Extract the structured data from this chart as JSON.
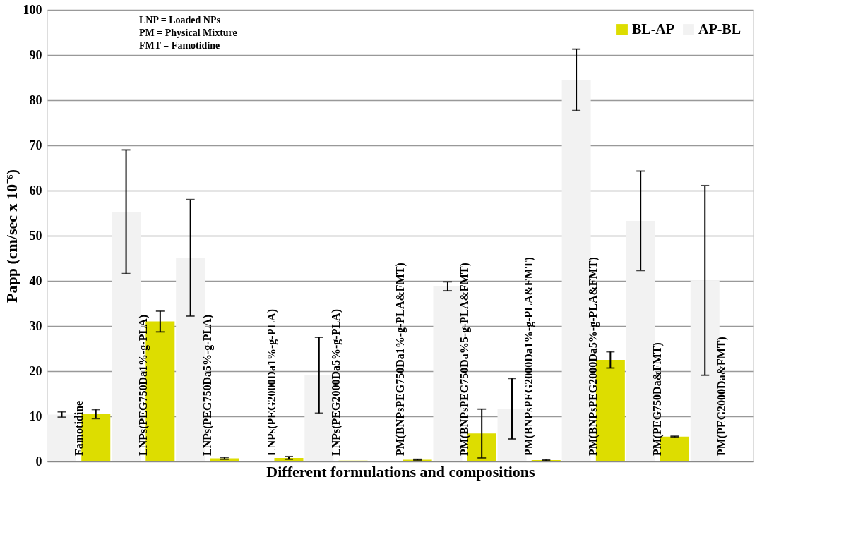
{
  "chart_data": {
    "type": "bar",
    "xlabel": "Different formulations and compositions",
    "ylabel": "Papp (cm/sec x 10⁻⁶)",
    "categories": [
      "Famotidine",
      "LNPs(PEG750Da1%-g-PLA)",
      "LNPs(PEG750Da5%-g-PLA)",
      "LNPs(PEG2000Da1%-g-PLA)",
      "LNPs(PEG2000Da5%-g-PLA)",
      "PM(BNPsPEG750Da1%-g-PLA&FMT)",
      "PM(BNPsPEG750Da%5-g-PLA&FMT)",
      "PM(BNPsPEG2000Da1%-g-PLA&FMT)",
      "PM(BNPsPEG2000Da5%-g-PLA&FMT)",
      "PM(PEG750Da&FMT)",
      "PM(PEG2000Da&FMT)"
    ],
    "series": [
      {
        "name": "AP-BL",
        "color": "#f2f2f2",
        "values": [
          10.4,
          55.3,
          45.1,
          null,
          19.1,
          null,
          38.8,
          11.7,
          84.5,
          53.3,
          40.1
        ],
        "errors": [
          0.6,
          13.7,
          12.9,
          null,
          8.4,
          null,
          1,
          6.7,
          6.8,
          11,
          21
        ]
      },
      {
        "name": "BL-AP",
        "color": "#dddd00",
        "values": [
          10.5,
          31.0,
          0.7,
          0.8,
          0.2,
          0.4,
          6.2,
          0.3,
          22.5,
          5.5,
          null
        ],
        "errors": [
          1,
          2.3,
          0.2,
          0.3,
          null,
          0.1,
          5.4,
          0.1,
          1.8,
          0.1,
          null
        ]
      }
    ],
    "ylim": [
      0,
      100
    ],
    "yticks": [
      0,
      10,
      20,
      30,
      40,
      50,
      60,
      70,
      80,
      90,
      100
    ],
    "grid": "y",
    "legend": "top right",
    "annotations": [
      "LNP   =    Loaded NPs",
      "PM     =    Physical Mixture",
      "FMT   =    Famotidine"
    ]
  }
}
